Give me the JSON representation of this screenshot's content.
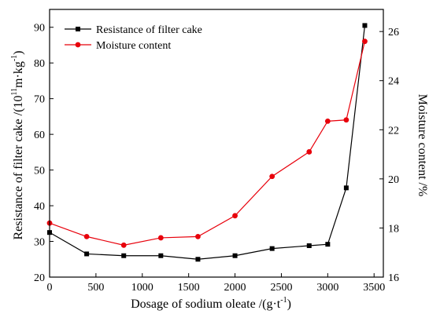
{
  "chart_data": {
    "type": "line",
    "xlabel_main": "Dosage of sodium oleate /(g·t",
    "xlabel_sup": "-1",
    "xlabel_end": ")",
    "ylabel_left_main": "Resistance of filter cake /(10",
    "ylabel_left_sup1": "11",
    "ylabel_left_mid": "m·kg",
    "ylabel_left_sup2": "-1",
    "ylabel_left_end": ")",
    "ylabel_right": "Moisture content /%",
    "xlim": [
      0,
      3600
    ],
    "ylim_left": [
      20,
      95
    ],
    "ylim_right": [
      16,
      26.9
    ],
    "x_ticks": [
      "0",
      "500",
      "1000",
      "1500",
      "2000",
      "2500",
      "3000",
      "3500"
    ],
    "y_left_ticks": [
      "20",
      "30",
      "40",
      "50",
      "60",
      "70",
      "80",
      "90"
    ],
    "y_right_ticks": [
      "16",
      "18",
      "20",
      "22",
      "24",
      "26"
    ],
    "legend_position": "top-left",
    "series": [
      {
        "name": "Resistance of filter cake",
        "axis": "left",
        "color": "#000000",
        "marker": "square",
        "x": [
          0,
          400,
          800,
          1200,
          1600,
          2000,
          2400,
          2800,
          3000,
          3200,
          3400
        ],
        "values": [
          32.5,
          26.5,
          26.0,
          26.0,
          25.0,
          26.0,
          28.0,
          28.8,
          29.2,
          45.0,
          90.5
        ]
      },
      {
        "name": "Moisture content",
        "axis": "right",
        "color": "#e8000b",
        "marker": "circle",
        "x": [
          0,
          400,
          800,
          1200,
          1600,
          2000,
          2400,
          2800,
          3000,
          3200,
          3400
        ],
        "values": [
          18.2,
          17.65,
          17.3,
          17.6,
          17.65,
          18.5,
          20.1,
          21.1,
          22.35,
          22.4,
          25.6
        ]
      }
    ]
  }
}
